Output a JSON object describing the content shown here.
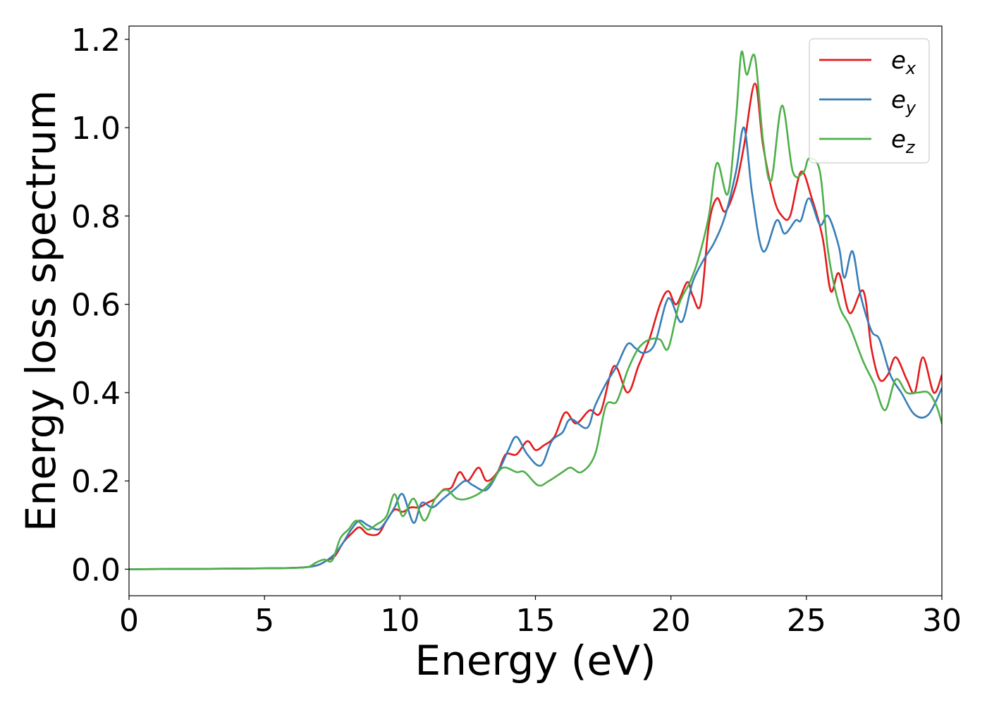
{
  "chart_data": {
    "type": "line",
    "title": "",
    "xlabel": "Energy (eV)",
    "ylabel": "Energy loss spectrum",
    "xlim": [
      0,
      30
    ],
    "ylim": [
      -0.06,
      1.23
    ],
    "xticks": [
      0,
      5,
      10,
      15,
      20,
      25,
      30
    ],
    "xtick_labels": [
      "0",
      "5",
      "10",
      "15",
      "20",
      "25",
      "30"
    ],
    "yticks": [
      0.0,
      0.2,
      0.4,
      0.6,
      0.8,
      1.0,
      1.2
    ],
    "ytick_labels": [
      "0.0",
      "0.2",
      "0.4",
      "0.6",
      "0.8",
      "1.0",
      "1.2"
    ],
    "grid": false,
    "legend": {
      "position": "top-right"
    },
    "series": [
      {
        "name": "e",
        "subscript": "x",
        "color": "#e41a1c",
        "points": [
          [
            0,
            0
          ],
          [
            3,
            0.001
          ],
          [
            5,
            0.002
          ],
          [
            6,
            0.003
          ],
          [
            6.6,
            0.005
          ],
          [
            7,
            0.01
          ],
          [
            7.3,
            0.02
          ],
          [
            7.6,
            0.03
          ],
          [
            7.9,
            0.06
          ],
          [
            8.2,
            0.08
          ],
          [
            8.5,
            0.095
          ],
          [
            8.8,
            0.08
          ],
          [
            9.2,
            0.08
          ],
          [
            9.5,
            0.11
          ],
          [
            9.8,
            0.135
          ],
          [
            10.1,
            0.13
          ],
          [
            10.4,
            0.14
          ],
          [
            10.7,
            0.14
          ],
          [
            11,
            0.15
          ],
          [
            11.3,
            0.16
          ],
          [
            11.6,
            0.18
          ],
          [
            11.9,
            0.185
          ],
          [
            12.2,
            0.22
          ],
          [
            12.5,
            0.2
          ],
          [
            12.9,
            0.23
          ],
          [
            13.2,
            0.2
          ],
          [
            13.6,
            0.22
          ],
          [
            13.9,
            0.26
          ],
          [
            14.3,
            0.26
          ],
          [
            14.7,
            0.29
          ],
          [
            15,
            0.27
          ],
          [
            15.3,
            0.28
          ],
          [
            15.7,
            0.3
          ],
          [
            16.1,
            0.355
          ],
          [
            16.5,
            0.33
          ],
          [
            17,
            0.36
          ],
          [
            17.4,
            0.355
          ],
          [
            17.9,
            0.46
          ],
          [
            18.4,
            0.4
          ],
          [
            18.8,
            0.46
          ],
          [
            19.2,
            0.52
          ],
          [
            19.6,
            0.6
          ],
          [
            19.9,
            0.63
          ],
          [
            20.2,
            0.6
          ],
          [
            20.6,
            0.65
          ],
          [
            20.8,
            0.62
          ],
          [
            21.1,
            0.6
          ],
          [
            21.4,
            0.78
          ],
          [
            21.7,
            0.84
          ],
          [
            22,
            0.81
          ],
          [
            22.4,
            0.87
          ],
          [
            22.7,
            0.96
          ],
          [
            23.1,
            1.1
          ],
          [
            23.4,
            0.96
          ],
          [
            23.8,
            0.84
          ],
          [
            24.1,
            0.8
          ],
          [
            24.4,
            0.8
          ],
          [
            24.8,
            0.9
          ],
          [
            25.2,
            0.84
          ],
          [
            25.6,
            0.75
          ],
          [
            25.9,
            0.63
          ],
          [
            26.2,
            0.67
          ],
          [
            26.6,
            0.58
          ],
          [
            27.1,
            0.63
          ],
          [
            27.4,
            0.5
          ],
          [
            27.7,
            0.43
          ],
          [
            28,
            0.44
          ],
          [
            28.3,
            0.48
          ],
          [
            28.7,
            0.43
          ],
          [
            29,
            0.4
          ],
          [
            29.3,
            0.48
          ],
          [
            29.7,
            0.4
          ],
          [
            30,
            0.44
          ]
        ]
      },
      {
        "name": "e",
        "subscript": "y",
        "color": "#377eb8",
        "points": [
          [
            0,
            0
          ],
          [
            3,
            0.001
          ],
          [
            5,
            0.002
          ],
          [
            6,
            0.003
          ],
          [
            6.6,
            0.005
          ],
          [
            7,
            0.01
          ],
          [
            7.3,
            0.02
          ],
          [
            7.6,
            0.035
          ],
          [
            7.9,
            0.06
          ],
          [
            8.2,
            0.09
          ],
          [
            8.5,
            0.11
          ],
          [
            8.8,
            0.1
          ],
          [
            9.2,
            0.09
          ],
          [
            9.5,
            0.11
          ],
          [
            9.8,
            0.14
          ],
          [
            10.1,
            0.17
          ],
          [
            10.5,
            0.105
          ],
          [
            10.8,
            0.15
          ],
          [
            11.2,
            0.14
          ],
          [
            11.6,
            0.16
          ],
          [
            12,
            0.18
          ],
          [
            12.4,
            0.2
          ],
          [
            12.7,
            0.19
          ],
          [
            13.2,
            0.18
          ],
          [
            13.7,
            0.23
          ],
          [
            14,
            0.27
          ],
          [
            14.3,
            0.3
          ],
          [
            14.7,
            0.26
          ],
          [
            15.2,
            0.235
          ],
          [
            15.6,
            0.29
          ],
          [
            16,
            0.31
          ],
          [
            16.3,
            0.34
          ],
          [
            16.9,
            0.32
          ],
          [
            17.2,
            0.37
          ],
          [
            17.6,
            0.42
          ],
          [
            18,
            0.46
          ],
          [
            18.4,
            0.51
          ],
          [
            18.7,
            0.5
          ],
          [
            19,
            0.49
          ],
          [
            19.4,
            0.51
          ],
          [
            19.8,
            0.6
          ],
          [
            20,
            0.61
          ],
          [
            20.4,
            0.56
          ],
          [
            20.8,
            0.65
          ],
          [
            21.2,
            0.7
          ],
          [
            21.6,
            0.74
          ],
          [
            22,
            0.8
          ],
          [
            22.4,
            0.9
          ],
          [
            22.7,
            1.0
          ],
          [
            23,
            0.85
          ],
          [
            23.4,
            0.72
          ],
          [
            23.9,
            0.79
          ],
          [
            24.2,
            0.76
          ],
          [
            24.6,
            0.79
          ],
          [
            24.8,
            0.79
          ],
          [
            25.1,
            0.84
          ],
          [
            25.5,
            0.78
          ],
          [
            25.8,
            0.8
          ],
          [
            26.2,
            0.73
          ],
          [
            26.4,
            0.66
          ],
          [
            26.7,
            0.72
          ],
          [
            27,
            0.62
          ],
          [
            27.4,
            0.54
          ],
          [
            27.7,
            0.52
          ],
          [
            28.1,
            0.44
          ],
          [
            28.5,
            0.4
          ],
          [
            29,
            0.35
          ],
          [
            29.5,
            0.35
          ],
          [
            30,
            0.41
          ]
        ]
      },
      {
        "name": "e",
        "subscript": "z",
        "color": "#4daf4a",
        "points": [
          [
            0,
            0
          ],
          [
            3,
            0.001
          ],
          [
            5,
            0.002
          ],
          [
            6,
            0.003
          ],
          [
            6.6,
            0.005
          ],
          [
            6.9,
            0.015
          ],
          [
            7.2,
            0.022
          ],
          [
            7.5,
            0.02
          ],
          [
            7.8,
            0.07
          ],
          [
            8.1,
            0.09
          ],
          [
            8.4,
            0.11
          ],
          [
            8.8,
            0.09
          ],
          [
            9.1,
            0.1
          ],
          [
            9.5,
            0.12
          ],
          [
            9.8,
            0.17
          ],
          [
            10.1,
            0.12
          ],
          [
            10.5,
            0.16
          ],
          [
            10.9,
            0.11
          ],
          [
            11.3,
            0.16
          ],
          [
            11.7,
            0.18
          ],
          [
            12.1,
            0.16
          ],
          [
            12.5,
            0.16
          ],
          [
            13,
            0.175
          ],
          [
            13.4,
            0.2
          ],
          [
            13.8,
            0.23
          ],
          [
            14.3,
            0.22
          ],
          [
            14.6,
            0.22
          ],
          [
            15.1,
            0.19
          ],
          [
            15.5,
            0.2
          ],
          [
            16,
            0.22
          ],
          [
            16.3,
            0.23
          ],
          [
            16.7,
            0.22
          ],
          [
            17.2,
            0.26
          ],
          [
            17.6,
            0.37
          ],
          [
            18,
            0.38
          ],
          [
            18.4,
            0.45
          ],
          [
            18.8,
            0.5
          ],
          [
            19.2,
            0.52
          ],
          [
            19.6,
            0.52
          ],
          [
            19.9,
            0.5
          ],
          [
            20.3,
            0.6
          ],
          [
            20.7,
            0.65
          ],
          [
            21,
            0.7
          ],
          [
            21.4,
            0.8
          ],
          [
            21.7,
            0.92
          ],
          [
            22.1,
            0.85
          ],
          [
            22.4,
            1.02
          ],
          [
            22.6,
            1.17
          ],
          [
            22.8,
            1.12
          ],
          [
            23.1,
            1.16
          ],
          [
            23.4,
            0.97
          ],
          [
            23.7,
            0.88
          ],
          [
            24.1,
            1.05
          ],
          [
            24.5,
            0.9
          ],
          [
            24.9,
            0.9
          ],
          [
            25.1,
            0.93
          ],
          [
            25.5,
            0.9
          ],
          [
            25.8,
            0.72
          ],
          [
            26.2,
            0.6
          ],
          [
            26.6,
            0.55
          ],
          [
            27.1,
            0.47
          ],
          [
            27.5,
            0.42
          ],
          [
            27.9,
            0.36
          ],
          [
            28.3,
            0.43
          ],
          [
            28.7,
            0.4
          ],
          [
            29.1,
            0.4
          ],
          [
            29.5,
            0.4
          ],
          [
            29.8,
            0.37
          ],
          [
            30,
            0.33
          ]
        ]
      }
    ]
  }
}
